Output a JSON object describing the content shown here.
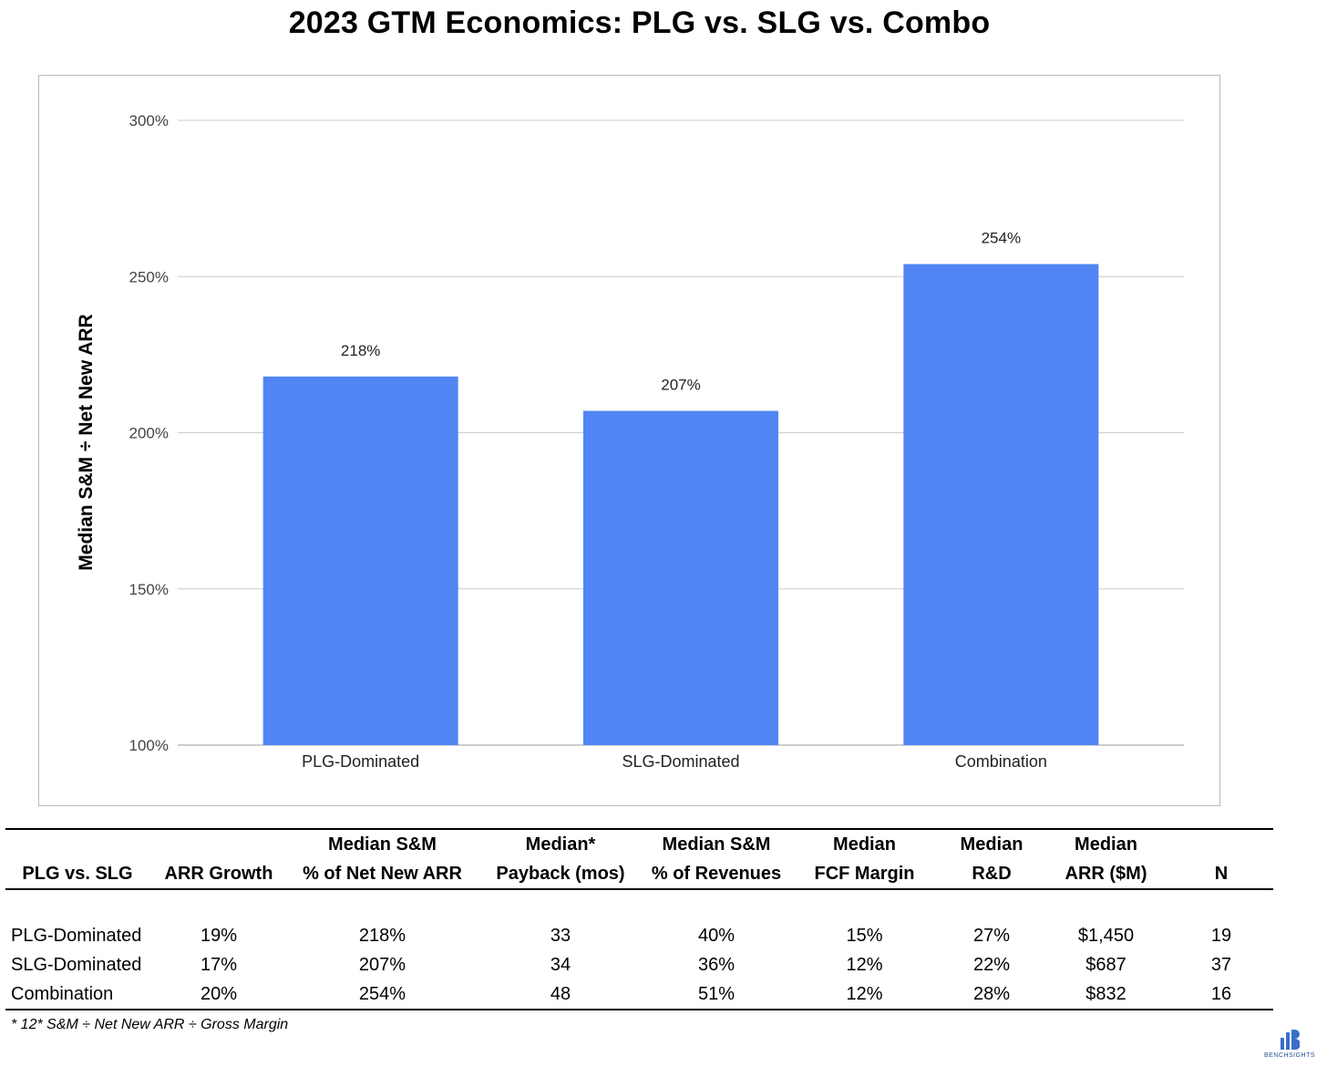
{
  "title": "2023 GTM Economics: PLG vs. SLG vs. Combo",
  "chart_data": {
    "type": "bar",
    "categories": [
      "PLG-Dominated",
      "SLG-Dominated",
      "Combination"
    ],
    "values": [
      218,
      207,
      254
    ],
    "data_labels": [
      "218%",
      "207%",
      "254%"
    ],
    "ylabel": "Median S&M ÷ Net New ARR",
    "xlabel": "",
    "ylim": [
      100,
      300
    ],
    "yticks": [
      100,
      150,
      200,
      250,
      300
    ],
    "ytick_labels": [
      "100%",
      "150%",
      "200%",
      "250%",
      "300%"
    ],
    "grid": true,
    "bar_color": "#5185f4",
    "gridline_color": "#cccccc"
  },
  "table": {
    "headers": [
      {
        "line1": "",
        "line2": "PLG vs. SLG"
      },
      {
        "line1": "",
        "line2": "ARR Growth"
      },
      {
        "line1": "Median S&M",
        "line2": "% of Net New ARR"
      },
      {
        "line1": "Median*",
        "line2": "Payback (mos)"
      },
      {
        "line1": "Median S&M",
        "line2": "% of Revenues"
      },
      {
        "line1": "Median",
        "line2": "FCF Margin"
      },
      {
        "line1": "Median",
        "line2": "R&D"
      },
      {
        "line1": "Median",
        "line2": "ARR ($M)"
      },
      {
        "line1": "",
        "line2": "N"
      }
    ],
    "rows": [
      [
        "PLG-Dominated",
        "19%",
        "218%",
        "33",
        "40%",
        "15%",
        "27%",
        "$1,450",
        "19"
      ],
      [
        "SLG-Dominated",
        "17%",
        "207%",
        "34",
        "36%",
        "12%",
        "22%",
        "$687",
        "37"
      ],
      [
        "Combination",
        "20%",
        "254%",
        "48",
        "51%",
        "12%",
        "28%",
        "$832",
        "16"
      ]
    ]
  },
  "footnote": "* 12* S&M ÷ Net New ARR ÷ Gross Margin",
  "logo": {
    "icon": "benchsights-logo-icon",
    "text": "BENCHSIGHTS"
  }
}
